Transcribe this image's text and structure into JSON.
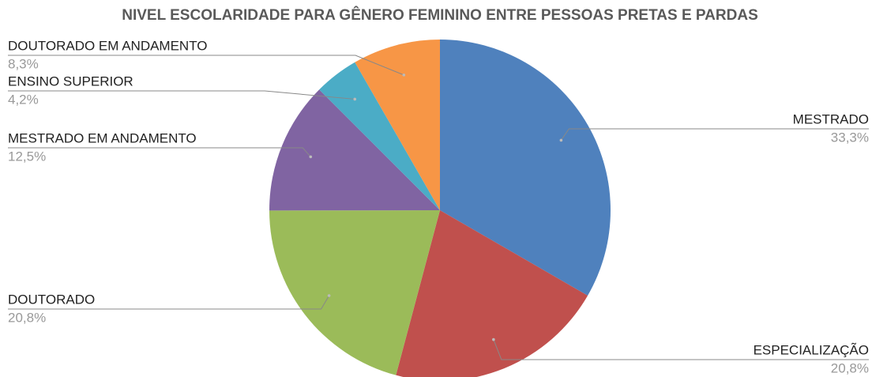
{
  "chart_data": {
    "type": "pie",
    "title": "NIVEL ESCOLARIDADE PARA GÊNERO FEMININO ENTRE PESSOAS PRETAS E PARDAS",
    "categories": [
      "MESTRADO",
      "ESPECIALIZAÇÃO",
      "DOUTORADO",
      "MESTRADO EM ANDAMENTO",
      "ENSINO SUPERIOR",
      "DOUTORADO EM ANDAMENTO"
    ],
    "values": [
      33.3,
      20.8,
      20.8,
      12.5,
      4.2,
      8.3
    ],
    "value_labels": [
      "33,3%",
      "20,8%",
      "20,8%",
      "12,5%",
      "4,2%",
      "8,3%"
    ],
    "colors": [
      "#4f81bd",
      "#c0504d",
      "#9bbb59",
      "#8064a2",
      "#4bacc6",
      "#f79646"
    ]
  }
}
